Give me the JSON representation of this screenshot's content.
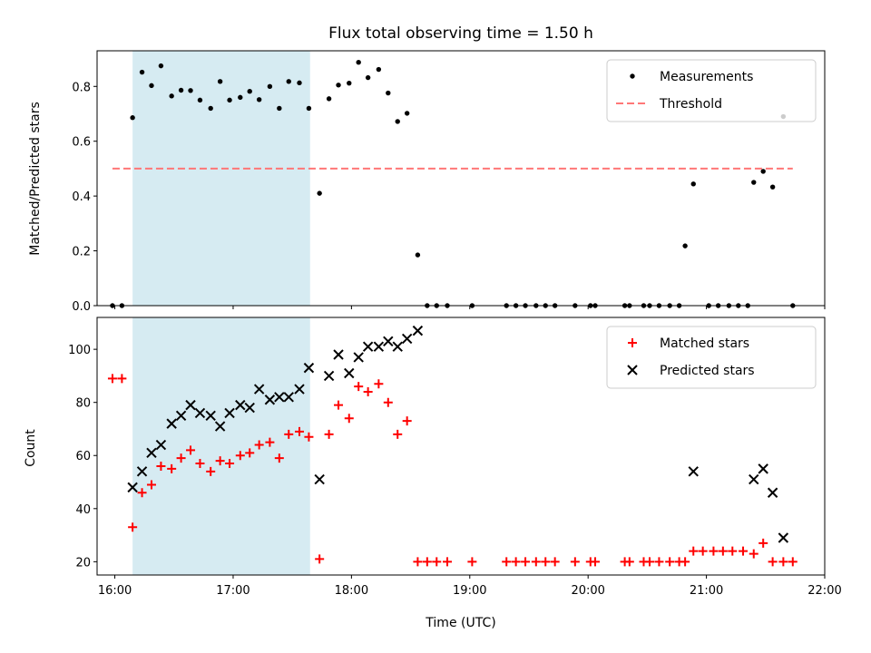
{
  "chart_data": [
    {
      "type": "scatter",
      "title": "Flux total observing time = 1.50 h",
      "xlabel": "",
      "ylabel": "Matched/Predicted stars",
      "xlim": [
        15.85,
        22.0
      ],
      "ylim": [
        0.0,
        0.93
      ],
      "yticks": [
        0.0,
        0.2,
        0.4,
        0.6,
        0.8
      ],
      "yticklabels": [
        "0.0",
        "0.2",
        "0.4",
        "0.6",
        "0.8"
      ],
      "shaded_span": [
        16.15,
        17.65
      ],
      "grid": false,
      "legend_position": "upper right",
      "legend": [
        "Measurements",
        "Threshold"
      ],
      "series": [
        {
          "name": "Measurements",
          "marker": "dot",
          "color": "#000000",
          "points": [
            [
              15.98,
              0.0
            ],
            [
              16.06,
              0.0
            ],
            [
              16.15,
              0.686
            ],
            [
              16.23,
              0.852
            ],
            [
              16.31,
              0.803
            ],
            [
              16.39,
              0.875
            ],
            [
              16.48,
              0.765
            ],
            [
              16.56,
              0.786
            ],
            [
              16.64,
              0.785
            ],
            [
              16.72,
              0.75
            ],
            [
              16.81,
              0.72
            ],
            [
              16.89,
              0.818
            ],
            [
              16.97,
              0.75
            ],
            [
              17.06,
              0.76
            ],
            [
              17.14,
              0.782
            ],
            [
              17.22,
              0.752
            ],
            [
              17.31,
              0.8
            ],
            [
              17.39,
              0.72
            ],
            [
              17.47,
              0.818
            ],
            [
              17.56,
              0.813
            ],
            [
              17.64,
              0.72
            ],
            [
              17.73,
              0.41
            ],
            [
              17.81,
              0.755
            ],
            [
              17.89,
              0.805
            ],
            [
              17.98,
              0.812
            ],
            [
              18.06,
              0.888
            ],
            [
              18.14,
              0.832
            ],
            [
              18.23,
              0.862
            ],
            [
              18.31,
              0.776
            ],
            [
              18.39,
              0.672
            ],
            [
              18.47,
              0.702
            ],
            [
              18.56,
              0.185
            ],
            [
              18.64,
              0.0
            ],
            [
              18.72,
              0.0
            ],
            [
              18.81,
              0.0
            ],
            [
              19.02,
              0.0
            ],
            [
              19.31,
              0.0
            ],
            [
              19.39,
              0.0
            ],
            [
              19.47,
              0.0
            ],
            [
              19.56,
              0.0
            ],
            [
              19.64,
              0.0
            ],
            [
              19.72,
              0.0
            ],
            [
              19.89,
              0.0
            ],
            [
              20.02,
              0.0
            ],
            [
              20.06,
              0.0
            ],
            [
              20.31,
              0.0
            ],
            [
              20.35,
              0.0
            ],
            [
              20.47,
              0.0
            ],
            [
              20.52,
              0.0
            ],
            [
              20.6,
              0.0
            ],
            [
              20.69,
              0.0
            ],
            [
              20.77,
              0.0
            ],
            [
              20.82,
              0.218
            ],
            [
              20.89,
              0.444
            ],
            [
              21.02,
              0.0
            ],
            [
              21.1,
              0.0
            ],
            [
              21.19,
              0.0
            ],
            [
              21.27,
              0.0
            ],
            [
              21.35,
              0.0
            ],
            [
              21.4,
              0.45
            ],
            [
              21.48,
              0.49
            ],
            [
              21.56,
              0.433
            ],
            [
              21.65,
              0.69
            ],
            [
              21.73,
              0.0
            ]
          ]
        },
        {
          "name": "Threshold",
          "type": "line",
          "style": "dashed",
          "color": "#ff7777",
          "x": [
            15.98,
            21.73
          ],
          "y": [
            0.5,
            0.5
          ]
        }
      ]
    },
    {
      "type": "scatter",
      "title": "",
      "xlabel": "Time (UTC)",
      "ylabel": "Count",
      "xlim": [
        15.85,
        22.0
      ],
      "ylim": [
        15,
        112
      ],
      "xticks": [
        16,
        17,
        18,
        19,
        20,
        21,
        22
      ],
      "xticklabels": [
        "16:00",
        "17:00",
        "18:00",
        "19:00",
        "20:00",
        "21:00",
        "22:00"
      ],
      "yticks": [
        20,
        40,
        60,
        80,
        100
      ],
      "yticklabels": [
        "20",
        "40",
        "60",
        "80",
        "100"
      ],
      "shaded_span": [
        16.15,
        17.65
      ],
      "grid": false,
      "legend_position": "upper right",
      "legend": [
        "Matched stars",
        "Predicted stars"
      ],
      "series": [
        {
          "name": "Matched stars",
          "marker": "plus",
          "color": "#ff0000",
          "points": [
            [
              15.98,
              89
            ],
            [
              16.06,
              89
            ],
            [
              16.15,
              33
            ],
            [
              16.23,
              46
            ],
            [
              16.31,
              49
            ],
            [
              16.39,
              56
            ],
            [
              16.48,
              55
            ],
            [
              16.56,
              59
            ],
            [
              16.64,
              62
            ],
            [
              16.72,
              57
            ],
            [
              16.81,
              54
            ],
            [
              16.89,
              58
            ],
            [
              16.97,
              57
            ],
            [
              17.06,
              60
            ],
            [
              17.14,
              61
            ],
            [
              17.22,
              64
            ],
            [
              17.31,
              65
            ],
            [
              17.39,
              59
            ],
            [
              17.47,
              68
            ],
            [
              17.56,
              69
            ],
            [
              17.64,
              67
            ],
            [
              17.73,
              21
            ],
            [
              17.81,
              68
            ],
            [
              17.89,
              79
            ],
            [
              17.98,
              74
            ],
            [
              18.06,
              86
            ],
            [
              18.14,
              84
            ],
            [
              18.23,
              87
            ],
            [
              18.31,
              80
            ],
            [
              18.39,
              68
            ],
            [
              18.47,
              73
            ],
            [
              18.56,
              20
            ],
            [
              18.64,
              20
            ],
            [
              18.72,
              20
            ],
            [
              18.81,
              20
            ],
            [
              19.02,
              20
            ],
            [
              19.31,
              20
            ],
            [
              19.39,
              20
            ],
            [
              19.47,
              20
            ],
            [
              19.56,
              20
            ],
            [
              19.64,
              20
            ],
            [
              19.72,
              20
            ],
            [
              19.89,
              20
            ],
            [
              20.02,
              20
            ],
            [
              20.06,
              20
            ],
            [
              20.31,
              20
            ],
            [
              20.35,
              20
            ],
            [
              20.47,
              20
            ],
            [
              20.52,
              20
            ],
            [
              20.6,
              20
            ],
            [
              20.69,
              20
            ],
            [
              20.77,
              20
            ],
            [
              20.82,
              20
            ],
            [
              20.89,
              24
            ],
            [
              20.97,
              24
            ],
            [
              21.06,
              24
            ],
            [
              21.14,
              24
            ],
            [
              21.22,
              24
            ],
            [
              21.31,
              24
            ],
            [
              21.4,
              23
            ],
            [
              21.48,
              27
            ],
            [
              21.56,
              20
            ],
            [
              21.65,
              20
            ],
            [
              21.73,
              20
            ]
          ]
        },
        {
          "name": "Predicted stars",
          "marker": "x",
          "color": "#000000",
          "points": [
            [
              16.15,
              48
            ],
            [
              16.23,
              54
            ],
            [
              16.31,
              61
            ],
            [
              16.39,
              64
            ],
            [
              16.48,
              72
            ],
            [
              16.56,
              75
            ],
            [
              16.64,
              79
            ],
            [
              16.72,
              76
            ],
            [
              16.81,
              75
            ],
            [
              16.89,
              71
            ],
            [
              16.97,
              76
            ],
            [
              17.06,
              79
            ],
            [
              17.14,
              78
            ],
            [
              17.22,
              85
            ],
            [
              17.31,
              81
            ],
            [
              17.39,
              82
            ],
            [
              17.47,
              82
            ],
            [
              17.56,
              85
            ],
            [
              17.64,
              93
            ],
            [
              17.73,
              51
            ],
            [
              17.81,
              90
            ],
            [
              17.89,
              98
            ],
            [
              17.98,
              91
            ],
            [
              18.06,
              97
            ],
            [
              18.14,
              101
            ],
            [
              18.23,
              101
            ],
            [
              18.31,
              103
            ],
            [
              18.39,
              101
            ],
            [
              18.47,
              104
            ],
            [
              18.56,
              107
            ],
            [
              20.89,
              54
            ],
            [
              21.4,
              51
            ],
            [
              21.48,
              55
            ],
            [
              21.56,
              46
            ],
            [
              21.65,
              29
            ]
          ]
        }
      ]
    }
  ]
}
